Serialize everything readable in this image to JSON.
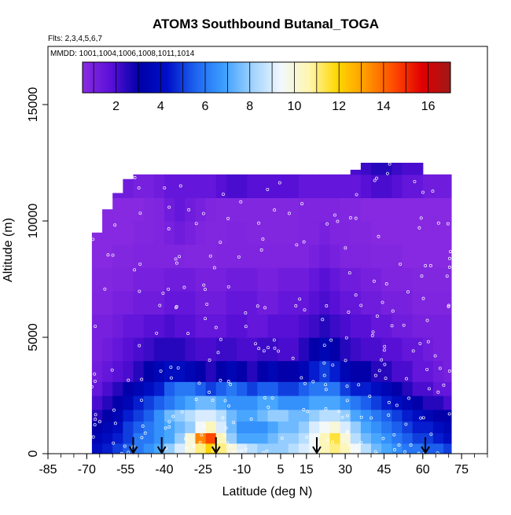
{
  "chart_data": {
    "type": "heatmap",
    "title": "ATOM3 Southbound Butanal_TOGA",
    "flights_note": "Flts: 2,3,4,5,6,7",
    "dates_note": "MMDD: 1001,1004,1006,1008,1011,1014",
    "xlabel": "Latitude (deg N)",
    "ylabel": "Altitude (m)",
    "xlim": [
      -85,
      85
    ],
    "ylim": [
      0,
      17500
    ],
    "x_ticks": [
      -85,
      -70,
      -55,
      -40,
      -25,
      -10,
      5,
      15,
      30,
      45,
      60,
      75
    ],
    "y_ticks": [
      0,
      5000,
      10000,
      15000
    ],
    "colorbar": {
      "min": 0.5,
      "max": 17,
      "ticks": [
        2,
        4,
        6,
        8,
        10,
        12,
        14,
        16
      ],
      "colors": [
        "#8a2be2",
        "#5a10d8",
        "#0000a8",
        "#0010c8",
        "#1e64f0",
        "#3ca0ff",
        "#9fd2ff",
        "#f2f8ff",
        "#fff6b0",
        "#ffd700",
        "#ff9900",
        "#ff4a00",
        "#e00000",
        "#a01818"
      ]
    },
    "arrows_latitude": [
      -52,
      -41,
      -20,
      19,
      61
    ],
    "curtain": {
      "lat_edges": [
        -68,
        -64,
        -60,
        -56,
        -52,
        -48,
        -44,
        -40,
        -36,
        -32,
        -28,
        -24,
        -20,
        -16,
        -12,
        -8,
        -4,
        0,
        4,
        8,
        12,
        16,
        20,
        24,
        28,
        32,
        36,
        40,
        44,
        48,
        52,
        56,
        60,
        64,
        68,
        71
      ],
      "alt_edges": [
        0,
        450,
        900,
        1400,
        1900,
        2500,
        3100,
        4000,
        5000,
        6000,
        7000,
        8000,
        9000,
        10000,
        11000,
        12000,
        12500
      ],
      "top_altitude": [
        9500,
        10500,
        11200,
        11800,
        12000,
        12000,
        12000,
        12000,
        12000,
        12000,
        12000,
        12000,
        12000,
        12000,
        12000,
        12000,
        12000,
        12000,
        12000,
        12000,
        12000,
        12000,
        12000,
        12000,
        12000,
        12200,
        12500,
        12500,
        12500,
        12500,
        12500,
        12500,
        12000,
        12000,
        12000
      ],
      "rows": [
        [
          4.0,
          4.5,
          5.0,
          5.5,
          6.0,
          6.5,
          7.0,
          8.0,
          9.0,
          10.0,
          11.0,
          12.0,
          11.0,
          10.0,
          9.0,
          8.5,
          8.0,
          8.0,
          8.0,
          8.5,
          9.0,
          9.5,
          10.5,
          11.0,
          10.5,
          9.5,
          8.5,
          7.5,
          7.0,
          6.5,
          6.0,
          6.0,
          5.5,
          5.5,
          5.0
        ],
        [
          3.5,
          4.0,
          4.5,
          5.0,
          6.0,
          6.0,
          6.5,
          7.0,
          8.0,
          10.0,
          13.5,
          14.5,
          10.5,
          8.0,
          7.0,
          7.0,
          7.0,
          7.5,
          8.0,
          8.0,
          8.5,
          9.5,
          10.5,
          11.5,
          10.0,
          8.5,
          7.5,
          7.0,
          6.5,
          6.0,
          5.5,
          5.0,
          5.0,
          4.5,
          4.0
        ],
        [
          3.0,
          3.5,
          4.0,
          5.0,
          5.5,
          6.0,
          6.5,
          7.0,
          7.5,
          8.0,
          9.5,
          10.5,
          9.0,
          7.5,
          6.5,
          6.5,
          6.5,
          7.0,
          7.5,
          7.5,
          8.0,
          9.0,
          9.5,
          10.0,
          9.0,
          8.0,
          7.0,
          6.5,
          6.0,
          5.5,
          5.0,
          4.5,
          4.5,
          4.0,
          3.5
        ],
        [
          2.5,
          3.0,
          3.5,
          4.5,
          5.0,
          5.5,
          6.5,
          7.5,
          8.0,
          8.5,
          9.0,
          9.0,
          8.5,
          7.5,
          7.0,
          7.0,
          7.5,
          8.0,
          8.0,
          7.5,
          7.5,
          8.0,
          8.5,
          8.5,
          8.0,
          7.0,
          6.5,
          6.0,
          5.5,
          5.0,
          4.5,
          4.0,
          3.5,
          3.0,
          3.0
        ],
        [
          2.0,
          2.5,
          3.0,
          3.5,
          4.5,
          5.0,
          5.5,
          6.0,
          6.5,
          7.0,
          7.5,
          7.5,
          7.0,
          6.5,
          6.5,
          6.5,
          7.0,
          7.0,
          6.5,
          6.5,
          6.5,
          7.0,
          7.0,
          7.0,
          6.5,
          6.0,
          5.5,
          5.0,
          4.5,
          4.0,
          3.5,
          3.0,
          2.5,
          2.5,
          2.0
        ],
        [
          1.5,
          2.0,
          2.5,
          3.0,
          3.5,
          4.0,
          4.5,
          5.5,
          6.0,
          6.0,
          5.5,
          5.0,
          5.5,
          6.0,
          5.5,
          5.0,
          5.5,
          5.5,
          5.0,
          5.0,
          5.5,
          6.0,
          6.0,
          6.0,
          5.0,
          4.5,
          4.5,
          4.0,
          3.5,
          3.0,
          2.5,
          2.0,
          2.0,
          1.5,
          1.5
        ],
        [
          1.2,
          1.5,
          1.8,
          2.0,
          2.5,
          3.0,
          3.5,
          4.0,
          4.0,
          3.5,
          3.0,
          2.5,
          3.0,
          3.5,
          3.0,
          2.5,
          3.0,
          3.5,
          3.0,
          3.0,
          3.5,
          4.5,
          5.0,
          4.5,
          3.5,
          3.0,
          3.0,
          2.5,
          2.5,
          2.0,
          2.0,
          1.5,
          1.5,
          1.2,
          1.0
        ],
        [
          1.0,
          1.2,
          1.5,
          1.8,
          2.0,
          2.2,
          2.5,
          2.5,
          2.5,
          2.2,
          2.0,
          2.0,
          2.2,
          2.2,
          2.0,
          2.0,
          2.2,
          2.2,
          2.0,
          2.0,
          2.5,
          3.0,
          3.5,
          3.0,
          2.5,
          2.2,
          2.0,
          2.0,
          1.8,
          1.8,
          1.5,
          1.5,
          1.2,
          1.0,
          1.0
        ],
        [
          1.0,
          1.0,
          1.2,
          1.5,
          1.5,
          1.8,
          1.8,
          2.0,
          1.8,
          1.8,
          1.5,
          1.5,
          1.5,
          1.8,
          1.8,
          1.5,
          1.5,
          1.8,
          1.8,
          1.8,
          2.0,
          2.2,
          2.5,
          2.2,
          2.0,
          1.8,
          1.8,
          1.5,
          1.5,
          1.2,
          1.2,
          1.0,
          1.0,
          1.0,
          1.0
        ],
        [
          0.8,
          0.8,
          1.0,
          1.0,
          1.2,
          1.2,
          1.2,
          1.5,
          1.5,
          1.5,
          1.2,
          1.2,
          1.2,
          1.5,
          1.5,
          1.5,
          1.2,
          1.2,
          1.5,
          1.5,
          1.5,
          1.8,
          2.0,
          1.8,
          1.5,
          1.5,
          1.2,
          1.2,
          1.0,
          1.0,
          1.0,
          0.8,
          0.8,
          0.8,
          0.8
        ],
        [
          0.7,
          0.7,
          0.8,
          0.8,
          1.0,
          1.0,
          1.0,
          1.2,
          1.2,
          1.2,
          1.0,
          1.0,
          1.0,
          1.2,
          1.2,
          1.2,
          1.0,
          1.0,
          1.2,
          1.2,
          1.2,
          1.5,
          1.8,
          1.5,
          1.2,
          1.2,
          1.0,
          1.0,
          0.8,
          0.8,
          0.8,
          0.7,
          0.7,
          0.7,
          0.7
        ],
        [
          0.6,
          0.6,
          0.7,
          0.7,
          0.8,
          0.8,
          0.8,
          0.8,
          0.8,
          0.7,
          0.7,
          0.7,
          0.8,
          0.8,
          0.8,
          0.8,
          0.8,
          0.8,
          0.8,
          0.8,
          0.8,
          1.0,
          1.2,
          1.0,
          0.8,
          0.8,
          0.8,
          0.7,
          0.7,
          0.7,
          0.6,
          0.6,
          0.6,
          0.6,
          0.6
        ],
        [
          0.6,
          0.6,
          0.6,
          0.6,
          0.7,
          0.7,
          0.8,
          1.0,
          1.2,
          1.0,
          0.8,
          0.7,
          0.7,
          0.8,
          0.8,
          0.7,
          0.7,
          0.7,
          0.7,
          0.7,
          0.8,
          0.8,
          1.0,
          0.8,
          0.8,
          0.7,
          0.7,
          0.6,
          0.6,
          0.6,
          0.6,
          0.6,
          0.6,
          0.6,
          0.6
        ],
        [
          0.6,
          0.6,
          0.6,
          0.6,
          0.6,
          0.7,
          0.8,
          1.2,
          1.5,
          1.2,
          1.0,
          0.8,
          0.7,
          0.7,
          0.7,
          0.7,
          0.7,
          0.7,
          0.7,
          0.7,
          0.8,
          0.8,
          0.8,
          0.8,
          0.7,
          0.7,
          0.6,
          0.6,
          0.6,
          0.6,
          0.6,
          0.6,
          0.6,
          0.6,
          0.6
        ],
        [
          1.5,
          1.5,
          1.2,
          1.2,
          1.0,
          1.0,
          1.2,
          1.5,
          1.5,
          1.5,
          1.5,
          1.5,
          1.8,
          2.0,
          2.0,
          1.8,
          1.8,
          1.8,
          1.8,
          1.8,
          1.5,
          1.5,
          1.5,
          1.5,
          1.5,
          1.5,
          1.8,
          2.0,
          2.0,
          1.8,
          1.5,
          1.5,
          1.2,
          1.2,
          1.2
        ],
        [
          2.0,
          2.0,
          1.8,
          1.8,
          1.8,
          1.8,
          2.0,
          2.0,
          2.2,
          2.2,
          2.2,
          2.2,
          2.5,
          2.5,
          2.5,
          2.5,
          2.5,
          2.5,
          2.5,
          2.5,
          2.2,
          2.2,
          2.0,
          2.0,
          2.0,
          2.0,
          2.2,
          2.5,
          2.5,
          2.2,
          2.0,
          2.0,
          1.8,
          1.8,
          1.8
        ]
      ]
    }
  }
}
